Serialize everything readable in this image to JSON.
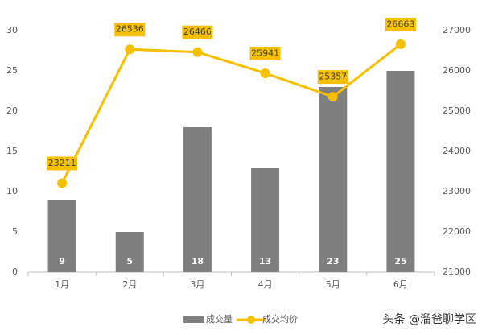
{
  "chart_data": {
    "type": "combo",
    "categories": [
      "1月",
      "2月",
      "3月",
      "4月",
      "5月",
      "6月"
    ],
    "series": [
      {
        "name": "成交量",
        "type": "bar",
        "color": "#7f7f7f",
        "values": [
          9,
          5,
          18,
          13,
          23,
          25
        ]
      },
      {
        "name": "成交均价",
        "type": "line",
        "axis": "y2",
        "color": "#f5c000",
        "values": [
          23211,
          26536,
          26466,
          25941,
          25357,
          26663
        ]
      }
    ],
    "ylim": [
      0,
      30
    ],
    "yticks": [
      0,
      5,
      10,
      15,
      20,
      25,
      30
    ],
    "y2lim": [
      21000,
      27000
    ],
    "y2ticks": [
      21000,
      22000,
      23000,
      24000,
      25000,
      26000,
      27000
    ],
    "grid": false,
    "legend": "bottom"
  },
  "watermark": "头条 @溜爸聊学区"
}
